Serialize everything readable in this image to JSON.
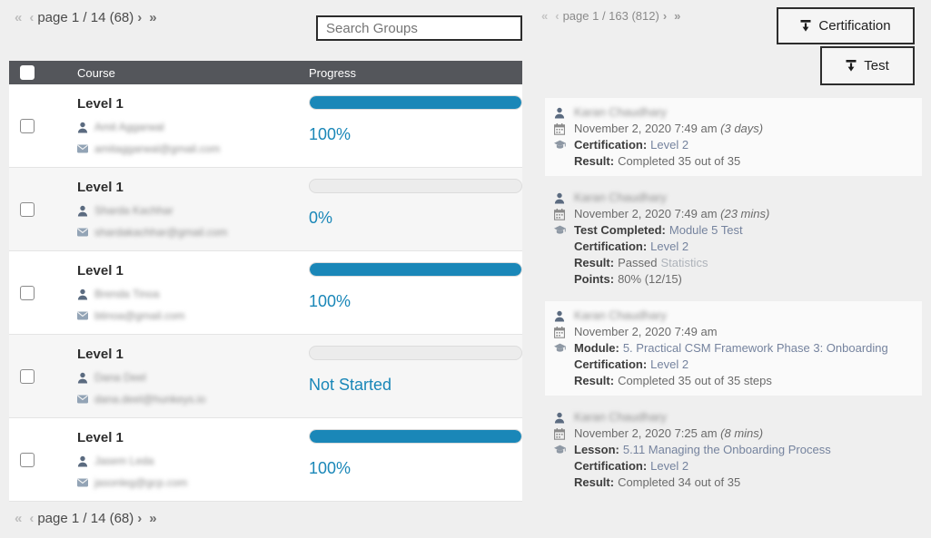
{
  "colors": {
    "accent_blue": "#1a87b8",
    "header_gray": "#54565b",
    "page_bg": "#efefef"
  },
  "left_panel": {
    "pagination_top": {
      "first": "«",
      "prev": "‹",
      "label": "page 1 / 14 (68)",
      "next": "›",
      "last": "»"
    },
    "pagination_bottom": {
      "first": "«",
      "prev": "‹",
      "label": "page 1 / 14 (68)",
      "next": "›",
      "last": "»"
    },
    "search": {
      "placeholder": "Search Groups"
    },
    "table": {
      "headers": {
        "course": "Course",
        "progress": "Progress"
      },
      "rows": [
        {
          "course": "Level 1",
          "name": "Amit Aggarwal",
          "email": "amitaggarwal@gmail.com",
          "progress_pct": 100,
          "progress_label": "100%"
        },
        {
          "course": "Level 1",
          "name": "Sharda Kachhar",
          "email": "shardakachhar@gmail.com",
          "progress_pct": 0,
          "progress_label": "0%"
        },
        {
          "course": "Level 1",
          "name": "Brenda Tinoa",
          "email": "btinoa@gmail.com",
          "progress_pct": 100,
          "progress_label": "100%"
        },
        {
          "course": "Level 1",
          "name": "Dana Deel",
          "email": "dana.deel@hunkeys.io",
          "progress_pct": 0,
          "progress_label": "Not Started"
        },
        {
          "course": "Level 1",
          "name": "Jasem Leda",
          "email": "jasonleg@gcp.com",
          "progress_pct": 100,
          "progress_label": "100%"
        }
      ]
    }
  },
  "right_panel": {
    "pagination": {
      "first": "«",
      "prev": "‹",
      "label": "page 1 / 163 (812)",
      "next": "›",
      "last": "»"
    },
    "filter_buttons": {
      "certification": "Certification",
      "test": "Test"
    },
    "activities": [
      {
        "user": "Karan Chaudhary",
        "date": "November 2, 2020 7:49 am",
        "ago": " (3 days)",
        "lines": [
          {
            "label": "Certification:",
            "value": "Level 2"
          },
          {
            "label": "Result:",
            "value": "Completed 35 out of 35"
          }
        ]
      },
      {
        "user": "Karan Chaudhary",
        "date": "November 2, 2020 7:49 am",
        "ago": " (23 mins)",
        "lines": [
          {
            "label": "Test Completed:",
            "value": "Module 5 Test"
          },
          {
            "label": "Certification:",
            "value": "Level 2"
          },
          {
            "label": "Result:",
            "value": "Passed",
            "extra": "Statistics"
          },
          {
            "label": "Points:",
            "value": "80% (12/15)"
          }
        ]
      },
      {
        "user": "Karan Chaudhary",
        "date": "November 2, 2020 7:49 am",
        "lines": [
          {
            "label": "Module:",
            "value": "5. Practical CSM Framework Phase 3: Onboarding"
          },
          {
            "label": "Certification:",
            "value": "Level 2"
          },
          {
            "label": "Result:",
            "value": "Completed 35 out of 35 steps"
          }
        ]
      },
      {
        "user": "Karan Chaudhary",
        "date": "November 2, 2020 7:25 am",
        "ago": " (8 mins)",
        "lines": [
          {
            "label": "Lesson:",
            "value": "5.11 Managing the Onboarding Process"
          },
          {
            "label": "Certification:",
            "value": "Level 2"
          },
          {
            "label": "Result:",
            "value": "Completed 34 out of 35"
          }
        ]
      }
    ]
  }
}
